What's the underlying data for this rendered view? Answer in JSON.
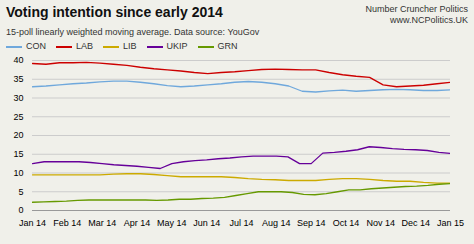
{
  "chart_data": {
    "type": "line",
    "title": "Voting intention since early 2014",
    "subtitle": "15-poll linearly weighted moving average. Data source: YouGov",
    "source_label": "Number Cruncher Politics\nwww.NCPolitics.UK",
    "xlim": [
      0,
      12
    ],
    "xticks": [
      {
        "value": 0,
        "label": "Jan 14"
      },
      {
        "value": 1,
        "label": "Feb 14"
      },
      {
        "value": 2,
        "label": "Mar 14"
      },
      {
        "value": 3,
        "label": "Apr 14"
      },
      {
        "value": 4,
        "label": "May 14"
      },
      {
        "value": 5,
        "label": "Jun 14"
      },
      {
        "value": 6,
        "label": "Jul 14"
      },
      {
        "value": 7,
        "label": "Aug 14"
      },
      {
        "value": 8,
        "label": "Sep 14"
      },
      {
        "value": 9,
        "label": "Oct 14"
      },
      {
        "value": 10,
        "label": "Nov 14"
      },
      {
        "value": 11,
        "label": "Dec 14"
      },
      {
        "value": 12,
        "label": "Jan 15"
      }
    ],
    "ylim": [
      0,
      40
    ],
    "yticks": [
      0,
      5,
      10,
      15,
      20,
      25,
      30,
      35,
      40
    ],
    "grid": true,
    "legend": "upper left",
    "series": [
      {
        "name": "CON",
        "color": "#6fa8dc",
        "x": [
          0,
          0.3871,
          0.7742,
          1.1613,
          1.5484,
          1.9355,
          2.3226,
          2.7097,
          3.0968,
          3.4839,
          3.871,
          4.2581,
          4.6452,
          5.0323,
          5.4194,
          5.8065,
          6.1935,
          6.5806,
          6.9677,
          7.3548,
          7.7419,
          8.129,
          8.5161,
          8.9032,
          9.2903,
          9.6774,
          10.0645,
          10.4516,
          10.8387,
          11.2258,
          11.6129,
          12
        ],
        "values": [
          33.0,
          33.2,
          33.5,
          33.8,
          34.0,
          34.3,
          34.5,
          34.5,
          34.2,
          33.8,
          33.3,
          33.0,
          33.2,
          33.5,
          33.8,
          34.2,
          34.4,
          34.2,
          33.8,
          33.2,
          31.8,
          31.6,
          31.9,
          32.1,
          31.8,
          32.0,
          32.2,
          32.3,
          32.2,
          32.0,
          32.0,
          32.2
        ]
      },
      {
        "name": "LAB",
        "color": "#cc0000",
        "x": [
          0,
          0.3871,
          0.7742,
          1.1613,
          1.5484,
          1.9355,
          2.3226,
          2.7097,
          3.0968,
          3.4839,
          3.871,
          4.2581,
          4.6452,
          5.0323,
          5.4194,
          5.8065,
          6.1935,
          6.5806,
          6.9677,
          7.3548,
          7.7419,
          8.129,
          8.5161,
          8.9032,
          9.2903,
          9.6774,
          10.0645,
          10.4516,
          10.8387,
          11.2258,
          11.6129,
          12
        ],
        "values": [
          39.2,
          39.0,
          39.4,
          39.4,
          39.5,
          39.3,
          39.0,
          38.7,
          38.2,
          37.8,
          37.5,
          37.2,
          36.8,
          36.5,
          36.8,
          37.0,
          37.3,
          37.6,
          37.7,
          37.6,
          37.5,
          37.5,
          36.8,
          36.2,
          35.8,
          35.5,
          33.5,
          33.0,
          33.2,
          33.4,
          33.8,
          34.2
        ]
      },
      {
        "name": "LIB",
        "color": "#ccaa00",
        "x": [
          0,
          0.3871,
          0.7742,
          1.1613,
          1.5484,
          1.9355,
          2.3226,
          2.7097,
          3.0968,
          3.4839,
          3.871,
          4.2581,
          4.6452,
          5.0323,
          5.4194,
          5.8065,
          6.1935,
          6.5806,
          6.9677,
          7.3548,
          7.7419,
          8.129,
          8.5161,
          8.9032,
          9.2903,
          9.6774,
          10.0645,
          10.4516,
          10.8387,
          11.2258,
          11.6129,
          12
        ],
        "values": [
          9.5,
          9.5,
          9.5,
          9.5,
          9.5,
          9.5,
          9.7,
          9.8,
          9.8,
          9.6,
          9.3,
          9.0,
          9.0,
          9.0,
          9.0,
          8.8,
          8.5,
          8.3,
          8.2,
          8.0,
          8.0,
          8.0,
          8.3,
          8.5,
          8.5,
          8.3,
          8.0,
          7.8,
          7.8,
          7.5,
          7.3,
          7.3
        ]
      },
      {
        "name": "UKIP",
        "color": "#660099",
        "x": [
          0,
          0.3333,
          0.6667,
          1,
          1.3333,
          1.6667,
          2,
          2.3333,
          2.6667,
          3,
          3.3333,
          3.6667,
          4,
          4.3333,
          4.6667,
          5,
          5.3333,
          5.6667,
          6,
          6.3333,
          6.6667,
          7,
          7.3333,
          7.6667,
          8,
          8.3333,
          8.6667,
          9,
          9.3333,
          9.6667,
          10,
          10.3333,
          10.6667,
          11,
          11.3333,
          11.6667,
          12
        ],
        "values": [
          12.5,
          13.0,
          13.0,
          13.0,
          13.0,
          12.8,
          12.5,
          12.2,
          12.0,
          11.8,
          11.5,
          11.2,
          12.5,
          13.0,
          13.3,
          13.5,
          13.8,
          14.0,
          14.3,
          14.5,
          14.5,
          14.5,
          14.3,
          12.5,
          12.5,
          15.3,
          15.5,
          15.8,
          16.2,
          17.0,
          16.8,
          16.5,
          16.3,
          16.2,
          16.0,
          15.5,
          15.2
        ]
      },
      {
        "name": "GRN",
        "color": "#669900",
        "x": [
          0,
          0.3243,
          0.6486,
          0.973,
          1.2973,
          1.6216,
          1.9459,
          2.2703,
          2.5946,
          2.9189,
          3.2432,
          3.5676,
          3.8919,
          4.2162,
          4.5405,
          4.8649,
          5.1892,
          5.5135,
          5.8378,
          6.1622,
          6.4865,
          6.8108,
          7.1351,
          7.4595,
          7.7838,
          8.1081,
          8.4324,
          8.7568,
          9.0811,
          9.4054,
          9.7297,
          10.0541,
          10.3784,
          10.7027,
          11.027,
          11.3514,
          11.6757,
          12
        ],
        "values": [
          2.2,
          2.3,
          2.4,
          2.5,
          2.7,
          2.8,
          2.8,
          2.8,
          2.8,
          2.8,
          2.8,
          2.7,
          2.8,
          3.0,
          3.0,
          3.2,
          3.3,
          3.5,
          4.0,
          4.5,
          5.0,
          5.0,
          5.0,
          4.8,
          4.3,
          4.2,
          4.5,
          5.0,
          5.5,
          5.5,
          5.8,
          6.0,
          6.2,
          6.4,
          6.5,
          6.7,
          7.0,
          7.2
        ]
      }
    ]
  }
}
